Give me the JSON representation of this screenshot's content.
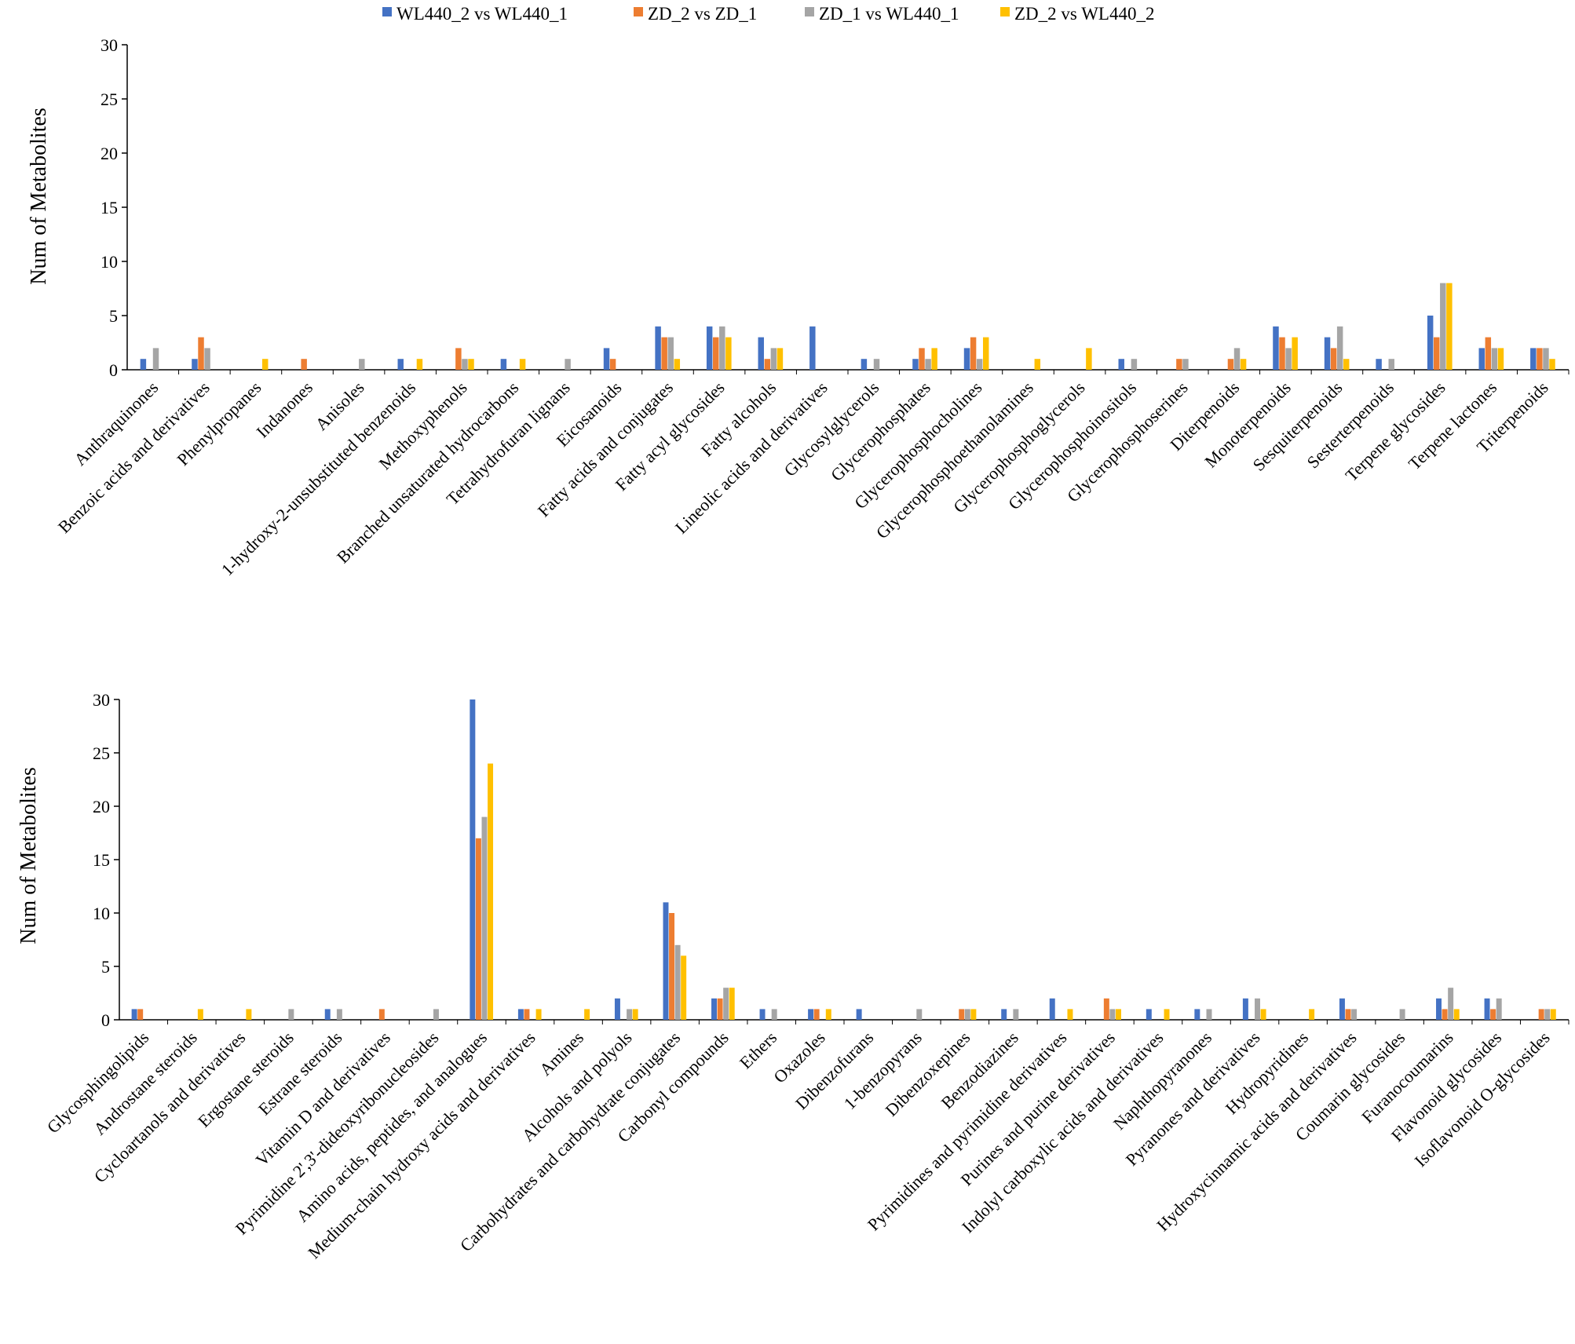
{
  "legend": [
    {
      "label": "WL440_2 vs WL440_1",
      "color": "#4472C4"
    },
    {
      "label": "ZD_2 vs ZD_1",
      "color": "#ED7D31"
    },
    {
      "label": "ZD_1 vs WL440_1",
      "color": "#A5A5A5"
    },
    {
      "label": "ZD_2 vs WL440_2",
      "color": "#FFC000"
    }
  ],
  "chart_data": [
    {
      "type": "bar",
      "title": "",
      "xlabel": "",
      "ylabel": "Num of Metabolites",
      "ylim": [
        0,
        30
      ],
      "yticks": [
        0,
        5,
        10,
        15,
        20,
        25,
        30
      ],
      "legend_position": "top-center",
      "categories": [
        "Anthraquinones",
        "Benzoic acids and derivatives",
        "Phenylpropanes",
        "Indanones",
        "Anisoles",
        "1-hydroxy-2-unsubstituted benzenoids",
        "Methoxyphenols",
        "Branched unsaturated hydrocarbons",
        "Tetrahydrofuran lignans",
        "Eicosanoids",
        "Fatty acids and conjugates",
        "Fatty acyl glycosides",
        "Fatty alcohols",
        "Lineolic acids and derivatives",
        "Glycosylglycerols",
        "Glycerophosphates",
        "Glycerophosphocholines",
        "Glycerophosphoethanolamines",
        "Glycerophosphoglycerols",
        "Glycerophosphoinositols",
        "Glycerophosphoserines",
        "Diterpenoids",
        "Monoterpenoids",
        "Sesquiterpenoids",
        "Sesterterpenoids",
        "Terpene glycosides",
        "Terpene lactones",
        "Triterpenoids"
      ],
      "series": [
        {
          "name": "WL440_2 vs WL440_1",
          "values": [
            1,
            1,
            0,
            0,
            0,
            1,
            0,
            1,
            0,
            2,
            4,
            4,
            3,
            4,
            1,
            1,
            2,
            0,
            0,
            1,
            0,
            0,
            4,
            3,
            1,
            5,
            2,
            2
          ]
        },
        {
          "name": "ZD_2 vs ZD_1",
          "values": [
            0,
            3,
            0,
            1,
            0,
            0,
            2,
            0,
            0,
            1,
            3,
            3,
            1,
            0,
            0,
            2,
            3,
            0,
            0,
            0,
            1,
            1,
            3,
            2,
            0,
            3,
            3,
            2
          ]
        },
        {
          "name": "ZD_1 vs WL440_1",
          "values": [
            2,
            2,
            0,
            0,
            1,
            0,
            1,
            0,
            1,
            0,
            3,
            4,
            2,
            0,
            1,
            1,
            1,
            0,
            0,
            1,
            1,
            2,
            2,
            4,
            1,
            8,
            2,
            2
          ]
        },
        {
          "name": "ZD_2 vs WL440_2",
          "values": [
            0,
            0,
            1,
            0,
            0,
            1,
            1,
            1,
            0,
            0,
            1,
            3,
            2,
            0,
            0,
            2,
            3,
            1,
            2,
            0,
            0,
            1,
            3,
            1,
            0,
            8,
            2,
            1
          ]
        }
      ]
    },
    {
      "type": "bar",
      "title": "",
      "xlabel": "",
      "ylabel": "Num of Metabolites",
      "ylim": [
        0,
        30
      ],
      "yticks": [
        0,
        5,
        10,
        15,
        20,
        25,
        30
      ],
      "categories": [
        "Glycosphingolipids",
        "Androstane steroids",
        "Cycloartanols and derivatives",
        "Ergostane steroids",
        "Estrane steroids",
        "Vitamin D and derivatives",
        "Pyrimidine 2',3'-dideoxyribonucleosides",
        "Amino acids, peptides, and analogues",
        "Medium-chain hydroxy acids and derivatives",
        "Amines",
        "Alcohols and polyols",
        "Carbohydrates and carbohydrate conjugates",
        "Carbonyl compounds",
        "Ethers",
        "Oxazoles",
        "Dibenzofurans",
        "1-benzopyrans",
        "Dibenzoxepines",
        "Benzodiazines",
        "Pyrimidines and pyrimidine derivatives",
        "Purines and purine derivatives",
        "Indolyl carboxylic acids and derivatives",
        "Naphthopyranones",
        "Pyranones and derivatives",
        "Hydropyridines",
        "Hydroxycinnamic acids and derivatives",
        "Coumarin glycosides",
        "Furanocoumarins",
        "Flavonoid glycosides",
        "Isoflavonoid O-glycosides"
      ],
      "series": [
        {
          "name": "WL440_2 vs WL440_1",
          "values": [
            1,
            0,
            0,
            0,
            1,
            0,
            0,
            30,
            1,
            0,
            2,
            11,
            2,
            1,
            1,
            1,
            0,
            0,
            1,
            2,
            0,
            1,
            1,
            2,
            0,
            2,
            0,
            2,
            2,
            0
          ]
        },
        {
          "name": "ZD_2 vs ZD_1",
          "values": [
            1,
            0,
            0,
            0,
            0,
            1,
            0,
            17,
            1,
            0,
            0,
            10,
            2,
            0,
            1,
            0,
            0,
            1,
            0,
            0,
            2,
            0,
            0,
            0,
            0,
            1,
            0,
            1,
            1,
            1
          ]
        },
        {
          "name": "ZD_1 vs WL440_1",
          "values": [
            0,
            0,
            0,
            1,
            1,
            0,
            1,
            19,
            0,
            0,
            1,
            7,
            3,
            1,
            0,
            0,
            1,
            1,
            1,
            0,
            1,
            0,
            1,
            2,
            0,
            1,
            1,
            3,
            2,
            1
          ]
        },
        {
          "name": "ZD_2 vs WL440_2",
          "values": [
            0,
            1,
            1,
            0,
            0,
            0,
            0,
            24,
            1,
            1,
            1,
            6,
            3,
            0,
            1,
            0,
            0,
            1,
            0,
            1,
            1,
            1,
            0,
            1,
            1,
            0,
            0,
            1,
            0,
            1
          ]
        }
      ]
    }
  ]
}
